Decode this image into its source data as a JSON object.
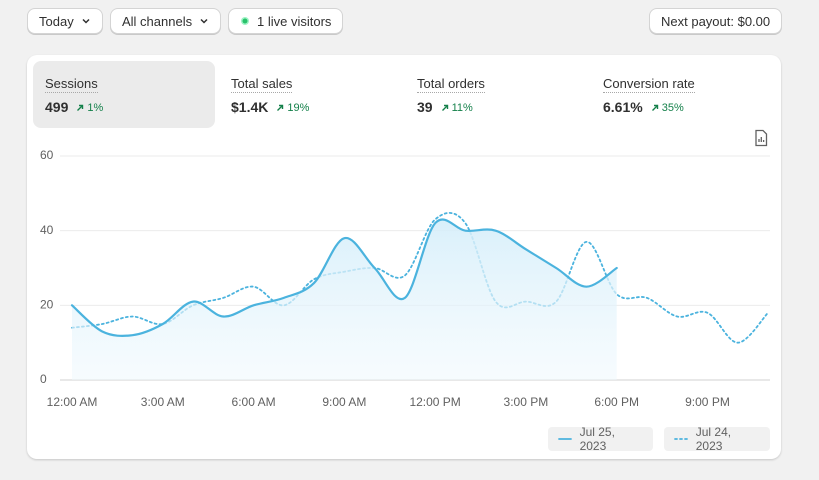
{
  "toolbar": {
    "date": "Today",
    "channels": "All channels",
    "live": "1 live visitors",
    "payout": "Next payout: $0.00"
  },
  "metrics": [
    {
      "label": "Sessions",
      "value": "499",
      "change": "1%"
    },
    {
      "label": "Total sales",
      "value": "$1.4K",
      "change": "19%"
    },
    {
      "label": "Total orders",
      "value": "39",
      "change": "11%"
    },
    {
      "label": "Conversion rate",
      "value": "6.61%",
      "change": "35%"
    }
  ],
  "chart_data": {
    "type": "line",
    "x": [
      0,
      1,
      2,
      3,
      4,
      5,
      6,
      7,
      8,
      9,
      10,
      11,
      12,
      13,
      14,
      15,
      16,
      17,
      18,
      19,
      20,
      21,
      22,
      23
    ],
    "xlim": [
      0,
      23
    ],
    "xticks": [
      {
        "value": 0,
        "label": "12:00 AM"
      },
      {
        "value": 3,
        "label": "3:00 AM"
      },
      {
        "value": 6,
        "label": "6:00 AM"
      },
      {
        "value": 9,
        "label": "9:00 AM"
      },
      {
        "value": 12,
        "label": "12:00 PM"
      },
      {
        "value": 15,
        "label": "3:00 PM"
      },
      {
        "value": 18,
        "label": "6:00 PM"
      },
      {
        "value": 21,
        "label": "9:00 PM"
      }
    ],
    "ylim": [
      0,
      60
    ],
    "yticks": [
      0,
      20,
      40,
      60
    ],
    "grid": true,
    "series": [
      {
        "name": "Jul 25, 2023",
        "color": "#4bb3de",
        "dash": "solid",
        "area": true,
        "values": [
          20,
          13,
          12,
          15,
          21,
          17,
          20,
          22,
          26,
          38,
          30,
          22,
          42,
          40,
          40,
          35,
          30,
          25,
          30,
          null,
          null,
          null,
          null,
          null
        ]
      },
      {
        "name": "Jul 24, 2023",
        "color": "#4bb3de",
        "dash": "dotted",
        "area": false,
        "values": [
          14,
          15,
          17,
          15,
          20,
          22,
          25,
          20,
          27,
          29,
          30,
          28,
          43,
          42,
          21,
          21,
          21,
          37,
          23,
          22,
          17,
          18,
          10,
          18
        ]
      }
    ]
  }
}
